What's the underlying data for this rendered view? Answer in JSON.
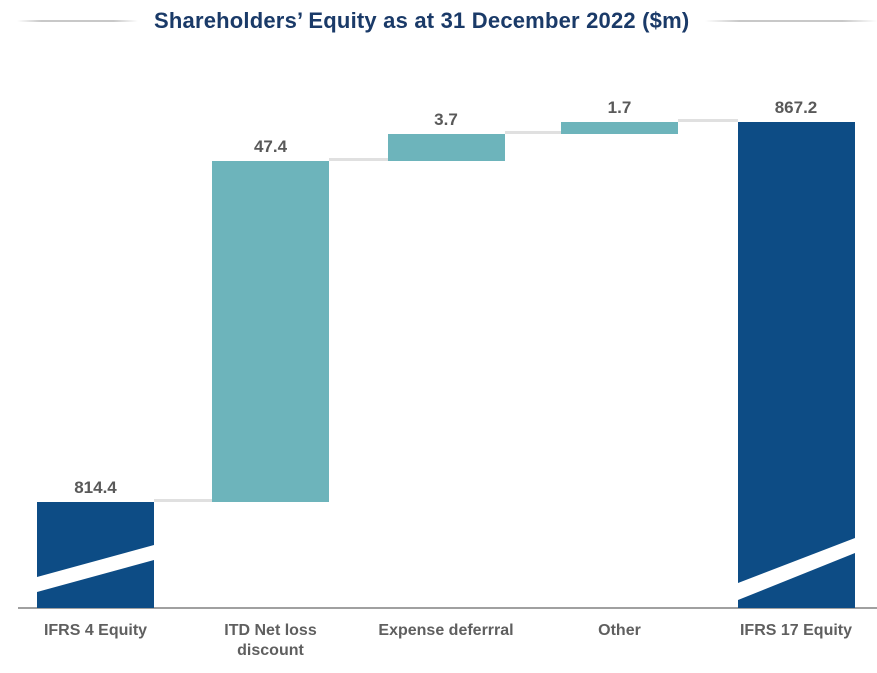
{
  "header": {
    "title_color": "#1a3a68"
  },
  "chart_data": {
    "type": "bar",
    "subtype": "waterfall",
    "title": "Shareholders’ Equity as at 31 December 2022 ($m)",
    "unit": "$m",
    "xlabel": "",
    "ylabel": "",
    "gridlines": false,
    "y_axis_visible": false,
    "baseline_visible": true,
    "axis_break_on_total_bars": true,
    "categories": [
      "IFRS 4 Equity",
      "ITD Net loss\ndiscount",
      "Expense deferrral",
      "Other",
      "IFRS 17 Equity"
    ],
    "values": [
      814.4,
      47.4,
      3.7,
      1.7,
      867.2
    ],
    "cumulative": [
      814.4,
      861.8,
      865.5,
      867.2,
      867.2
    ],
    "bars": [
      {
        "label": "IFRS 4 Equity",
        "axis_label": "IFRS 4 Equity",
        "value": 814.4,
        "display": "814.4",
        "kind": "total",
        "color_key": "navy",
        "axis_break": true
      },
      {
        "label": "ITD Net loss discount",
        "axis_label": "ITD Net loss\ndiscount",
        "value": 47.4,
        "display": "47.4",
        "kind": "increase",
        "color_key": "teal",
        "axis_break": false
      },
      {
        "label": "Expense deferrral",
        "axis_label": "Expense deferrral",
        "value": 3.7,
        "display": "3.7",
        "kind": "increase",
        "color_key": "teal",
        "axis_break": false
      },
      {
        "label": "Other",
        "axis_label": "Other",
        "value": 1.7,
        "display": "1.7",
        "kind": "increase",
        "color_key": "teal",
        "axis_break": false
      },
      {
        "label": "IFRS 17 Equity",
        "axis_label": "IFRS 17 Equity",
        "value": 867.2,
        "display": "867.2",
        "kind": "total",
        "color_key": "navy",
        "axis_break": true
      }
    ],
    "colors": {
      "navy": "#0d4c85",
      "teal": "#6db4bb",
      "connector": "#e0e0e0",
      "baseline": "#a0a0a0",
      "value_label": "#595959",
      "category_label": "#5f5f5f",
      "axis_break_stripe": "#ffffff"
    },
    "legend": {
      "visible": false
    }
  }
}
